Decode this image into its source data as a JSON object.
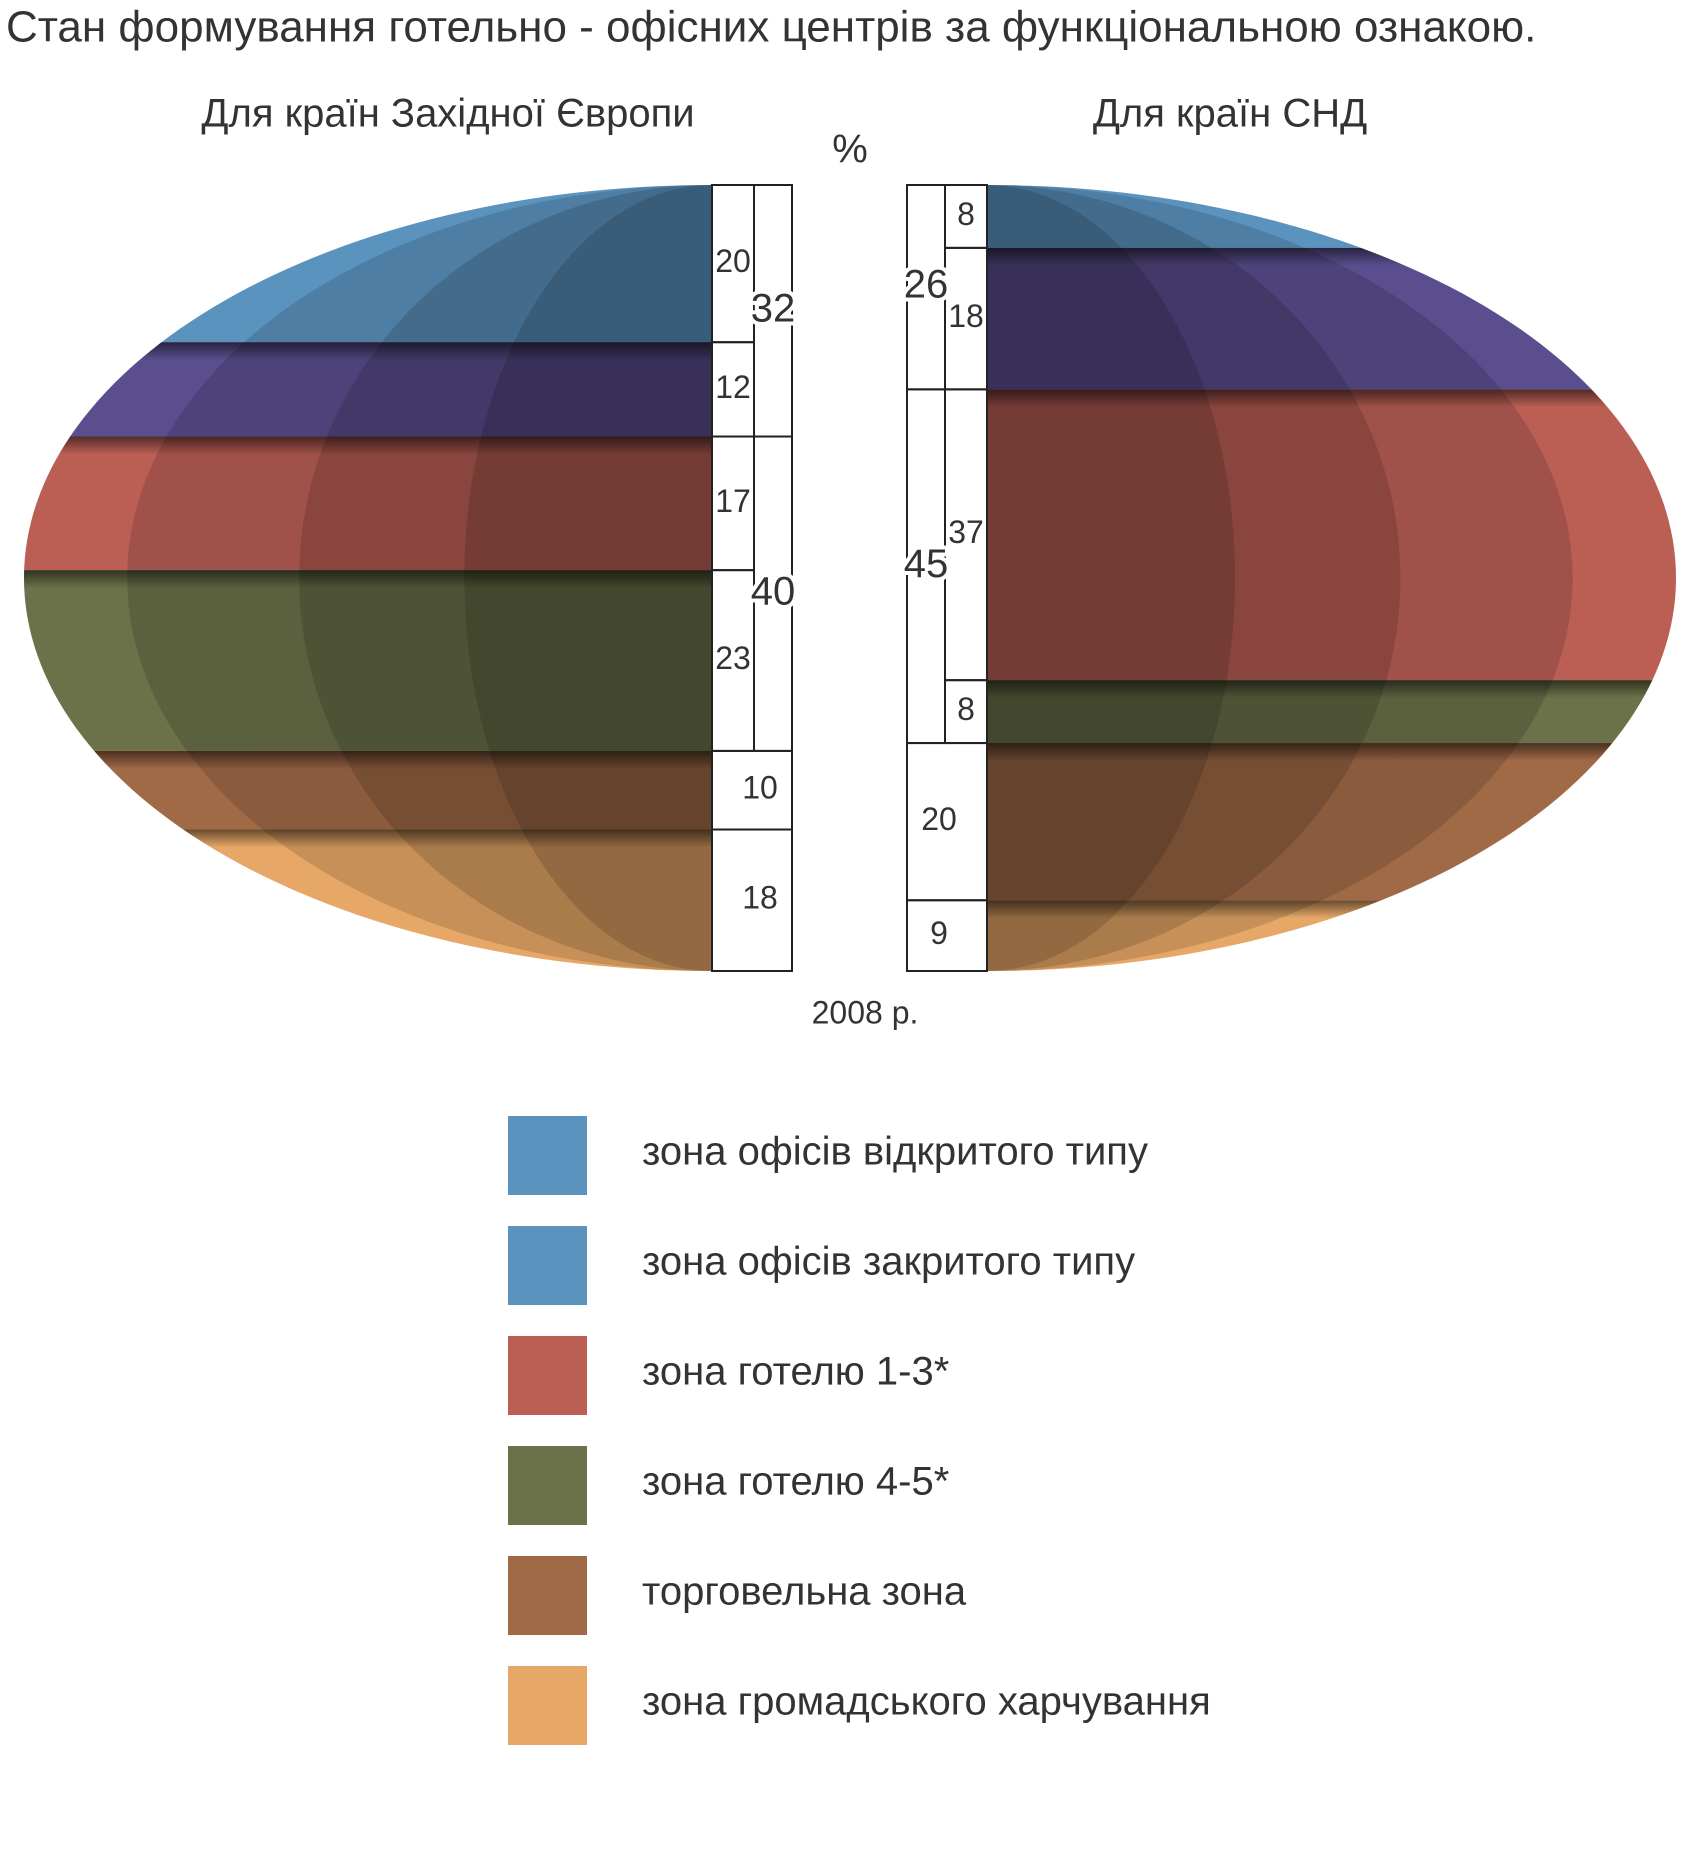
{
  "chart_data": {
    "type": "half-ellipse-stack",
    "title": "Стан формування готельно - офісних центрів за функціональною ознакою.",
    "subtitle": "2008 р.",
    "unit": "%",
    "categories": [
      "зона офісів відкритого типу",
      "зона офісів закритого типу",
      "зона готелю 1-3*",
      "зона готелю 4-5*",
      "торговельна зона",
      "зона громадського харчування"
    ],
    "colors": [
      "#5b93bf",
      "#5a4e8e",
      "#bb5f55",
      "#6b7249",
      "#a16a47",
      "#e7a867"
    ],
    "legend_colors": [
      "#5b93bf",
      "#5b93bf",
      "#bb5f55",
      "#6b7249",
      "#a16a47",
      "#e7a867"
    ],
    "series": [
      {
        "name": "Для країн Західної Європи",
        "side": "left",
        "values": [
          20,
          12,
          17,
          23,
          10,
          18
        ],
        "groups": [
          {
            "span": [
              0,
              1
            ],
            "value": 32
          },
          {
            "span": [
              2,
              3
            ],
            "value": 40
          }
        ]
      },
      {
        "name": "Для країн СНД",
        "side": "right",
        "values": [
          8,
          18,
          37,
          8,
          20,
          9
        ],
        "groups": [
          {
            "span": [
              0,
              1
            ],
            "value": 26
          },
          {
            "span": [
              2,
              3
            ],
            "value": 45
          }
        ]
      }
    ]
  }
}
